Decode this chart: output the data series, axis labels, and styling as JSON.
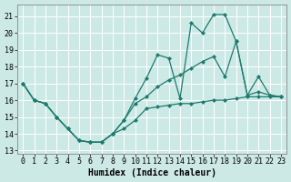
{
  "xlabel": "Humidex (Indice chaleur)",
  "ylabel": "",
  "bg_color": "#cce9e5",
  "grid_color": "#b0d8d3",
  "line_color": "#1e7b6e",
  "marker_color": "#1e7b6e",
  "xlim": [
    -0.5,
    23.5
  ],
  "ylim": [
    12.8,
    21.7
  ],
  "yticks": [
    13,
    14,
    15,
    16,
    17,
    18,
    19,
    20,
    21
  ],
  "xticks": [
    0,
    1,
    2,
    3,
    4,
    5,
    6,
    7,
    8,
    9,
    10,
    11,
    12,
    13,
    14,
    15,
    16,
    17,
    18,
    19,
    20,
    21,
    22,
    23
  ],
  "line1_x": [
    0,
    1,
    2,
    3,
    4,
    5,
    6,
    7,
    8,
    9,
    10,
    11,
    12,
    13,
    14,
    15,
    16,
    17,
    18,
    19,
    20,
    21,
    22,
    23
  ],
  "line1_y": [
    17.0,
    16.0,
    15.8,
    15.0,
    14.3,
    13.6,
    13.5,
    13.5,
    14.0,
    14.3,
    14.8,
    15.5,
    15.6,
    15.7,
    15.8,
    15.8,
    15.9,
    16.0,
    16.0,
    16.1,
    16.2,
    16.2,
    16.2,
    16.2
  ],
  "line2_x": [
    0,
    1,
    2,
    3,
    4,
    5,
    6,
    7,
    8,
    9,
    10,
    11,
    12,
    13,
    14,
    15,
    16,
    17,
    18,
    19,
    20,
    21,
    22,
    23
  ],
  "line2_y": [
    17.0,
    16.0,
    15.8,
    15.0,
    14.3,
    13.6,
    13.5,
    13.5,
    14.0,
    14.8,
    16.1,
    17.3,
    18.7,
    18.5,
    16.1,
    20.6,
    20.0,
    21.1,
    21.1,
    19.5,
    16.3,
    16.5,
    16.3,
    16.2
  ],
  "line3_x": [
    0,
    1,
    2,
    3,
    4,
    5,
    6,
    7,
    8,
    9,
    10,
    11,
    12,
    13,
    14,
    15,
    16,
    17,
    18,
    19,
    20,
    21,
    22,
    23
  ],
  "line3_y": [
    17.0,
    16.0,
    15.8,
    15.0,
    14.3,
    13.6,
    13.5,
    13.5,
    14.0,
    14.8,
    15.8,
    16.2,
    16.8,
    17.2,
    17.5,
    17.9,
    18.3,
    18.6,
    17.4,
    19.5,
    16.3,
    17.4,
    16.3,
    16.2
  ],
  "tick_fontsize": 6.0,
  "label_fontsize": 7.0,
  "marker_size": 2.0,
  "line_width": 0.9
}
